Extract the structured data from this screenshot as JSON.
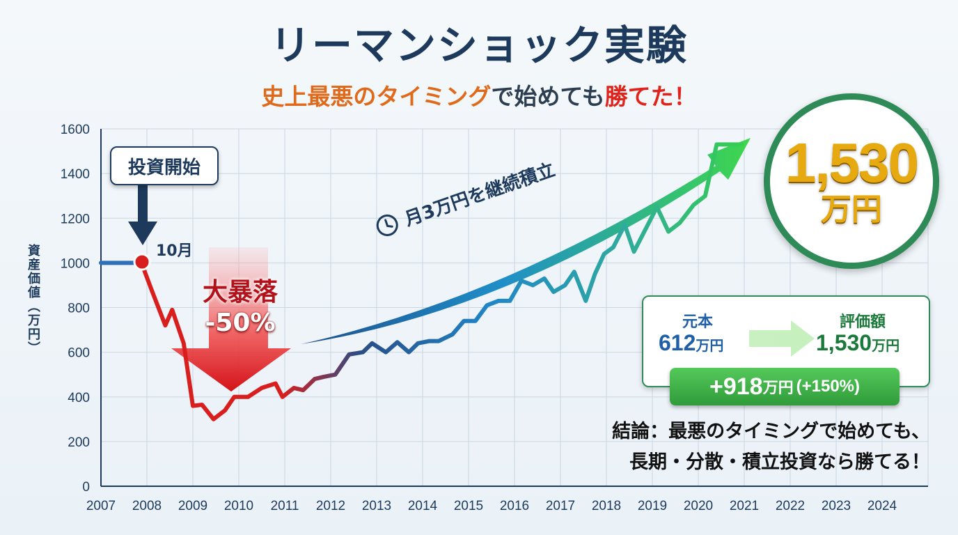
{
  "title": "リーマンショック実験",
  "subtitle": {
    "part1": "史上最悪のタイミング",
    "part2": "で始めても",
    "part3": "勝てた！"
  },
  "annotations": {
    "start_label": "投資開始",
    "start_month": "10月",
    "crash_title": "大暴落",
    "crash_pct": "-50%",
    "arrow_label": "月3万円を継続積立",
    "final_value": "1,530",
    "final_unit": "万円"
  },
  "summary": {
    "principal_label": "元本",
    "principal_value": "612",
    "principal_unit": "万円",
    "eval_label": "評価額",
    "eval_value": "1,530",
    "eval_unit": "万円",
    "gain_value": "+918",
    "gain_unit": "万円",
    "gain_pct": "(+150%)"
  },
  "conclusion": {
    "line1": "結論：最悪のタイミングで始めても、",
    "line2": "長期・分散・積立投資なら勝てる！"
  },
  "colors": {
    "navy": "#1d3a5c",
    "crash_red": "#d91e1e",
    "growth_green": "#2fbf4a",
    "accent_orange": "#e06a1b"
  },
  "chart_data": {
    "type": "line",
    "title": "リーマンショック実験",
    "xlabel": "",
    "ylabel": "資産価値（万円）",
    "ylim": [
      0,
      1600
    ],
    "xlim": [
      2007,
      2025
    ],
    "yticks": [
      0,
      200,
      400,
      600,
      800,
      1000,
      1200,
      1400,
      1600
    ],
    "xticks": [
      "2007",
      "2008",
      "2009",
      "2010",
      "2011",
      "2012",
      "2013",
      "2014",
      "2015",
      "2016",
      "2017",
      "2018",
      "2019",
      "2020",
      "2021",
      "2022",
      "2023",
      "2024"
    ],
    "grid": true,
    "series": [
      {
        "name": "資産価値",
        "x": [
          2007.0,
          2007.4,
          2007.8,
          2007.9,
          2008.1,
          2008.4,
          2008.55,
          2008.8,
          2009.0,
          2009.2,
          2009.45,
          2009.7,
          2009.9,
          2010.2,
          2010.5,
          2010.8,
          2010.95,
          2011.2,
          2011.4,
          2011.65,
          2011.85,
          2012.1,
          2012.4,
          2012.7,
          2012.9,
          2013.2,
          2013.45,
          2013.7,
          2013.9,
          2014.15,
          2014.35,
          2014.65,
          2014.9,
          2015.15,
          2015.4,
          2015.65,
          2015.9,
          2016.15,
          2016.4,
          2016.65,
          2016.85,
          2017.1,
          2017.3,
          2017.55,
          2017.75,
          2017.95,
          2018.15,
          2018.4,
          2018.6,
          2018.85,
          2019.1,
          2019.35,
          2019.6,
          2019.9,
          2020.15,
          2020.4,
          2020.6,
          2020.8,
          2020.95
        ],
        "values": [
          1000,
          1000,
          1000,
          990,
          880,
          720,
          790,
          640,
          360,
          365,
          300,
          340,
          400,
          400,
          440,
          460,
          400,
          440,
          430,
          480,
          490,
          500,
          590,
          600,
          640,
          600,
          645,
          600,
          640,
          650,
          650,
          680,
          740,
          740,
          810,
          830,
          830,
          920,
          900,
          930,
          870,
          900,
          960,
          830,
          950,
          1040,
          1070,
          1170,
          1050,
          1150,
          1250,
          1140,
          1180,
          1260,
          1300,
          1530,
          1530,
          1530,
          1530
        ]
      }
    ]
  }
}
